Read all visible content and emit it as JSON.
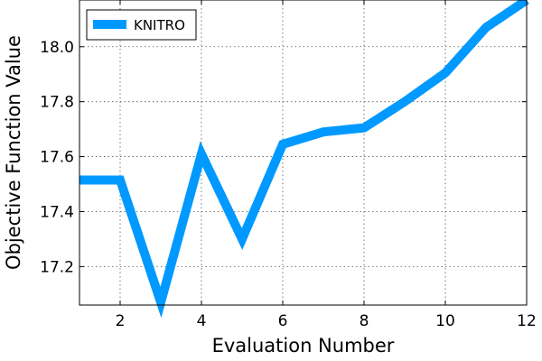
{
  "chart_data": {
    "type": "line",
    "title": "",
    "xlabel": "Evaluation Number",
    "ylabel": "Objective Function Value",
    "xlim": [
      1,
      12
    ],
    "ylim": [
      17.06,
      18.17
    ],
    "x_ticks": [
      2,
      4,
      6,
      8,
      10,
      12
    ],
    "y_ticks": [
      17.2,
      17.4,
      17.6,
      17.8,
      18.0
    ],
    "grid": true,
    "legend_position": "top-left",
    "series": [
      {
        "name": "KNITRO",
        "color": "#0099ff",
        "x": [
          1,
          2,
          3,
          4,
          5,
          6,
          7,
          8,
          9,
          10,
          11,
          12
        ],
        "y": [
          17.515,
          17.515,
          17.07,
          17.61,
          17.3,
          17.645,
          17.69,
          17.705,
          17.8,
          17.905,
          18.07,
          18.17
        ]
      }
    ]
  }
}
